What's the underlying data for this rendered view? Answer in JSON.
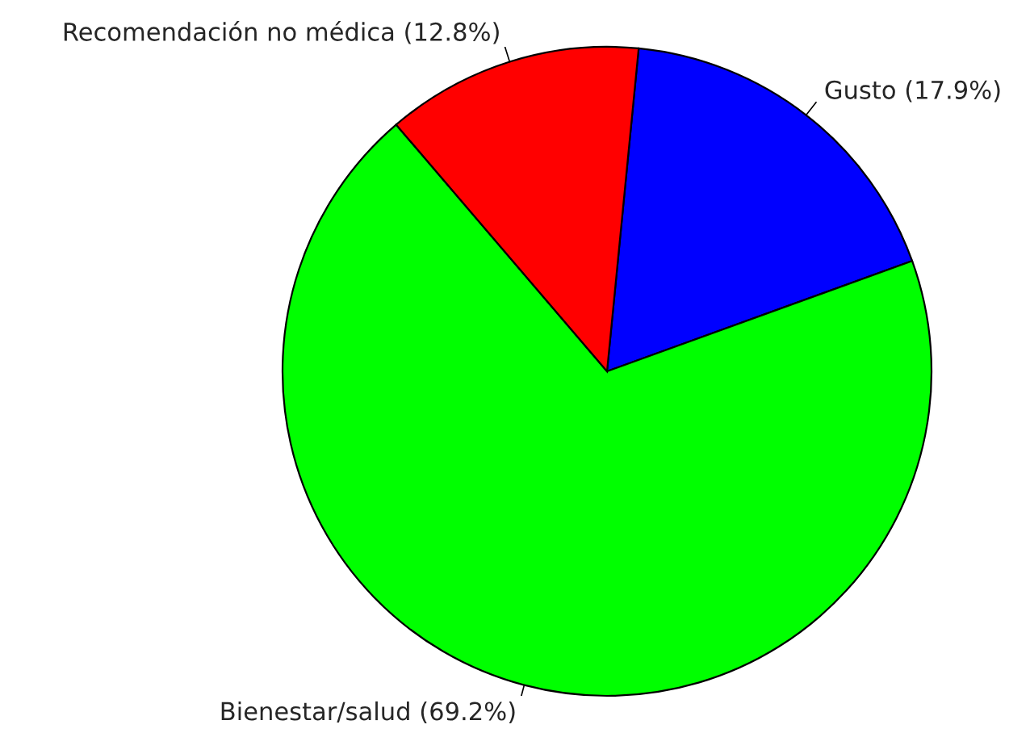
{
  "chart_data": {
    "type": "pie",
    "categories": [
      "Gusto (17.9%)",
      "Bienestar/salud (69.2%)",
      "Recomendación no médica (12.8%)"
    ],
    "values": [
      17.9,
      69.2,
      12.8
    ],
    "colors": [
      "#0000ff",
      "#00ff00",
      "#ff0000"
    ]
  }
}
